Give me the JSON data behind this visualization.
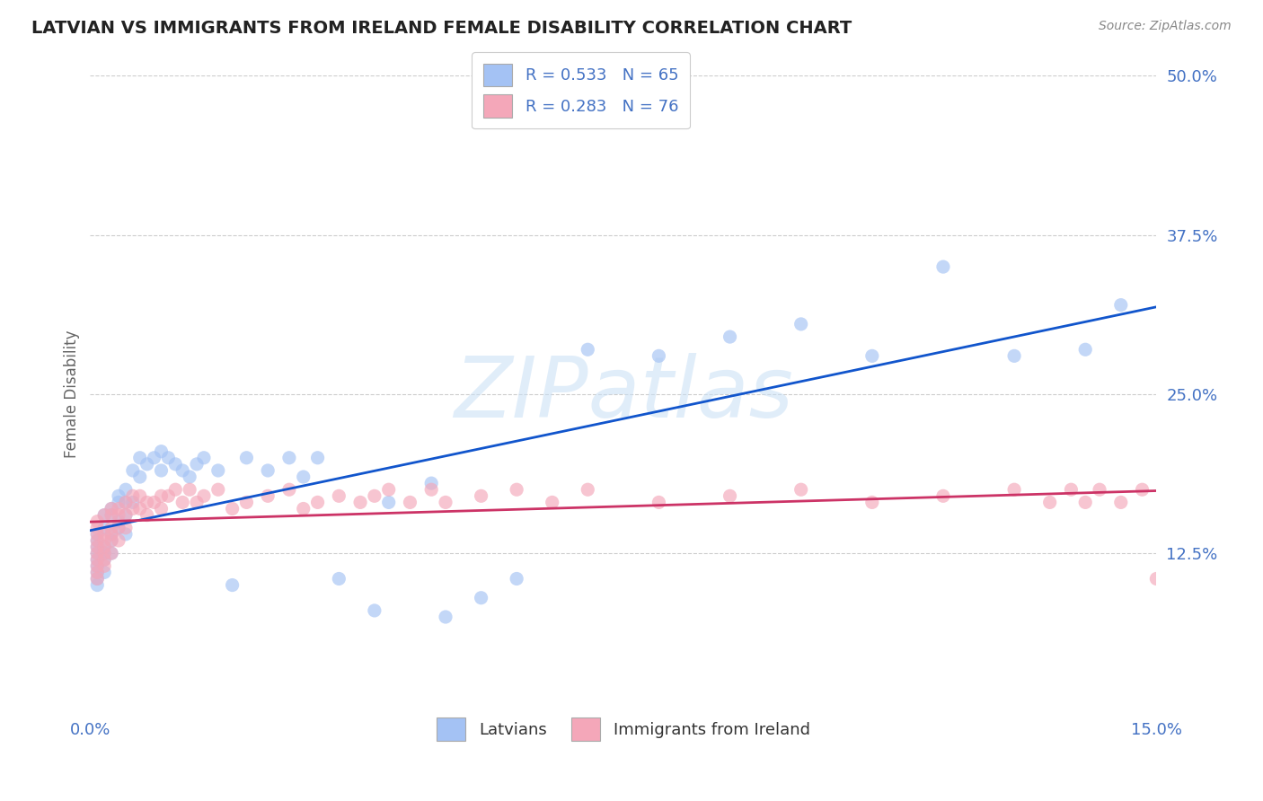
{
  "title": "LATVIAN VS IMMIGRANTS FROM IRELAND FEMALE DISABILITY CORRELATION CHART",
  "source_text": "Source: ZipAtlas.com",
  "ylabel": "Female Disability",
  "xlim": [
    0.0,
    0.15
  ],
  "ylim": [
    0.0,
    0.5
  ],
  "yticks": [
    0.0,
    0.125,
    0.25,
    0.375,
    0.5
  ],
  "ytick_labels": [
    "",
    "12.5%",
    "25.0%",
    "37.5%",
    "50.0%"
  ],
  "xticks": [
    0.0,
    0.15
  ],
  "xtick_labels": [
    "0.0%",
    "15.0%"
  ],
  "latvian_R": 0.533,
  "latvian_N": 65,
  "ireland_R": 0.283,
  "ireland_N": 76,
  "blue_scatter_color": "#a4c2f4",
  "pink_scatter_color": "#f4a7b9",
  "blue_line_color": "#1155cc",
  "pink_line_color": "#cc3366",
  "tick_color": "#4472c4",
  "ylabel_color": "#666666",
  "title_color": "#222222",
  "source_color": "#888888",
  "grid_color": "#cccccc",
  "background_color": "#ffffff",
  "legend_blue_label": "R = 0.533   N = 65",
  "legend_pink_label": "R = 0.283   N = 76",
  "legend_lat": "Latvians",
  "legend_ire": "Immigrants from Ireland",
  "watermark_text": "ZIPatlas",
  "lat_x": [
    0.001,
    0.001,
    0.001,
    0.001,
    0.001,
    0.001,
    0.001,
    0.001,
    0.001,
    0.002,
    0.002,
    0.002,
    0.002,
    0.002,
    0.002,
    0.003,
    0.003,
    0.003,
    0.003,
    0.003,
    0.004,
    0.004,
    0.004,
    0.004,
    0.005,
    0.005,
    0.005,
    0.005,
    0.006,
    0.006,
    0.007,
    0.007,
    0.008,
    0.009,
    0.01,
    0.01,
    0.011,
    0.012,
    0.013,
    0.014,
    0.015,
    0.016,
    0.018,
    0.02,
    0.022,
    0.025,
    0.028,
    0.03,
    0.032,
    0.035,
    0.04,
    0.042,
    0.048,
    0.05,
    0.055,
    0.06,
    0.07,
    0.08,
    0.09,
    0.1,
    0.11,
    0.12,
    0.13,
    0.14,
    0.145
  ],
  "lat_y": [
    0.135,
    0.13,
    0.12,
    0.125,
    0.115,
    0.11,
    0.105,
    0.14,
    0.1,
    0.155,
    0.13,
    0.125,
    0.145,
    0.12,
    0.11,
    0.16,
    0.155,
    0.14,
    0.135,
    0.125,
    0.17,
    0.165,
    0.15,
    0.145,
    0.175,
    0.165,
    0.155,
    0.14,
    0.19,
    0.165,
    0.2,
    0.185,
    0.195,
    0.2,
    0.205,
    0.19,
    0.2,
    0.195,
    0.19,
    0.185,
    0.195,
    0.2,
    0.19,
    0.1,
    0.2,
    0.19,
    0.2,
    0.185,
    0.2,
    0.105,
    0.08,
    0.165,
    0.18,
    0.075,
    0.09,
    0.105,
    0.285,
    0.28,
    0.295,
    0.305,
    0.28,
    0.35,
    0.28,
    0.285,
    0.32
  ],
  "ire_x": [
    0.001,
    0.001,
    0.001,
    0.001,
    0.001,
    0.001,
    0.001,
    0.001,
    0.001,
    0.001,
    0.002,
    0.002,
    0.002,
    0.002,
    0.002,
    0.002,
    0.002,
    0.003,
    0.003,
    0.003,
    0.003,
    0.003,
    0.003,
    0.004,
    0.004,
    0.004,
    0.004,
    0.005,
    0.005,
    0.005,
    0.006,
    0.006,
    0.007,
    0.007,
    0.008,
    0.008,
    0.009,
    0.01,
    0.01,
    0.011,
    0.012,
    0.013,
    0.014,
    0.015,
    0.016,
    0.018,
    0.02,
    0.022,
    0.025,
    0.028,
    0.03,
    0.032,
    0.035,
    0.038,
    0.04,
    0.042,
    0.045,
    0.048,
    0.05,
    0.055,
    0.06,
    0.065,
    0.07,
    0.08,
    0.09,
    0.1,
    0.11,
    0.12,
    0.13,
    0.135,
    0.138,
    0.14,
    0.142,
    0.145,
    0.148,
    0.15
  ],
  "ire_y": [
    0.14,
    0.135,
    0.13,
    0.125,
    0.12,
    0.115,
    0.11,
    0.105,
    0.145,
    0.15,
    0.155,
    0.14,
    0.135,
    0.13,
    0.125,
    0.12,
    0.115,
    0.16,
    0.155,
    0.145,
    0.14,
    0.135,
    0.125,
    0.16,
    0.155,
    0.145,
    0.135,
    0.165,
    0.155,
    0.145,
    0.17,
    0.16,
    0.17,
    0.16,
    0.165,
    0.155,
    0.165,
    0.17,
    0.16,
    0.17,
    0.175,
    0.165,
    0.175,
    0.165,
    0.17,
    0.175,
    0.16,
    0.165,
    0.17,
    0.175,
    0.16,
    0.165,
    0.17,
    0.165,
    0.17,
    0.175,
    0.165,
    0.175,
    0.165,
    0.17,
    0.175,
    0.165,
    0.175,
    0.165,
    0.17,
    0.175,
    0.165,
    0.17,
    0.175,
    0.165,
    0.175,
    0.165,
    0.175,
    0.165,
    0.175,
    0.105
  ]
}
